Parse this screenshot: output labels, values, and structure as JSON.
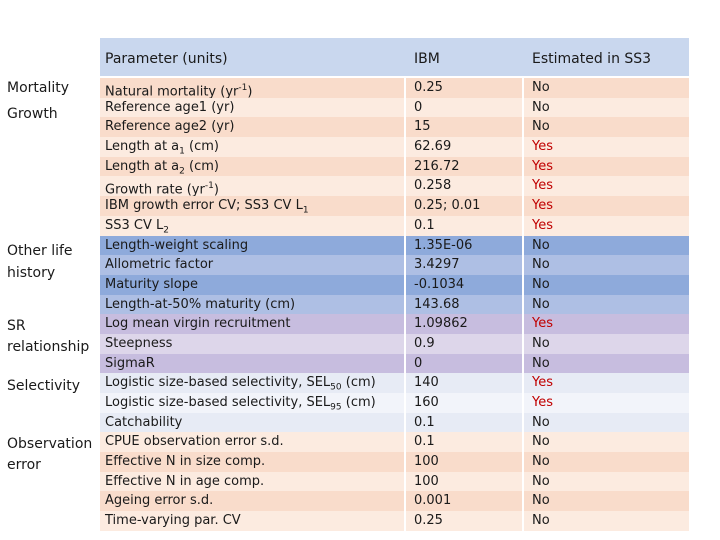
{
  "header": {
    "col_param": "Parameter (units)",
    "col_ibm": "IBM",
    "col_est": "Estimated in SS3"
  },
  "groups": {
    "mortality": "Mortality",
    "growth": "Growth",
    "other_life_1": "Other life",
    "other_life_2": "history",
    "sr_1": "SR",
    "sr_2": "relationship",
    "selectivity": "Selectivity",
    "obs_1": "Observation",
    "obs_2": "error"
  },
  "rows": [
    {
      "param": "Natural mortality (yr",
      "sup": "-1",
      "tail": ")",
      "ibm": "0.25",
      "est": "No"
    },
    {
      "param": "Reference age1 (yr)",
      "ibm": "0",
      "est": "No"
    },
    {
      "param": "Reference age2 (yr)",
      "ibm": "15",
      "est": "No"
    },
    {
      "param": "Length at a",
      "sub": "1",
      "tail": " (cm)",
      "ibm": "62.69",
      "est": "Yes"
    },
    {
      "param": "Length at a",
      "sub": "2",
      "tail": " (cm)",
      "ibm": "216.72",
      "est": "Yes"
    },
    {
      "param": "Growth rate (yr",
      "sup": "-1",
      "tail": ")",
      "ibm": "0.258",
      "est": "Yes"
    },
    {
      "param": "IBM growth error CV; SS3 CV L",
      "sub": "1",
      "tail": "",
      "ibm": "0.25; 0.01",
      "est": "Yes"
    },
    {
      "param": "SS3 CV L",
      "sub": "2",
      "tail": "",
      "ibm": "0.1",
      "est": "Yes"
    },
    {
      "param": "Length-weight scaling",
      "ibm": "1.35E-06",
      "est": "No"
    },
    {
      "param": "Allometric factor",
      "ibm": "3.4297",
      "est": "No"
    },
    {
      "param": "Maturity slope",
      "ibm": "-0.1034",
      "est": "No"
    },
    {
      "param": "Length-at-50% maturity (cm)",
      "ibm": "143.68",
      "est": "No"
    },
    {
      "param": "Log mean virgin recruitment",
      "ibm": "1.09862",
      "est": "Yes"
    },
    {
      "param": "Steepness",
      "ibm": "0.9",
      "est": "No"
    },
    {
      "param": "SigmaR",
      "ibm": "0",
      "est": "No"
    },
    {
      "param": "Logistic size-based selectivity, SEL",
      "sub": "50",
      "tail": " (cm)",
      "ibm": "140",
      "est": "Yes"
    },
    {
      "param": "Logistic size-based selectivity, SEL",
      "sub": "95",
      "tail": " (cm)",
      "ibm": "160",
      "est": "Yes"
    },
    {
      "param": "Catchability",
      "ibm": "0.1",
      "est": "No"
    },
    {
      "param": "CPUE observation error s.d.",
      "ibm": "0.1",
      "est": "No"
    },
    {
      "param": "Effective N in size comp.",
      "ibm": "100",
      "est": "No"
    },
    {
      "param": "Effective N in age comp.",
      "ibm": "100",
      "est": "No"
    },
    {
      "param": "Ageing error s.d.",
      "ibm": "0.001",
      "est": "No"
    },
    {
      "param": "Time-varying par. CV",
      "ibm": "0.25",
      "est": "No"
    }
  ],
  "colors": {
    "header": "#c9d7ee",
    "peach": "#f9dccb",
    "blue": "#8eaadb",
    "purple": "#c7bddf",
    "light": "#e7ebf5",
    "yes_text": "#c00000"
  }
}
